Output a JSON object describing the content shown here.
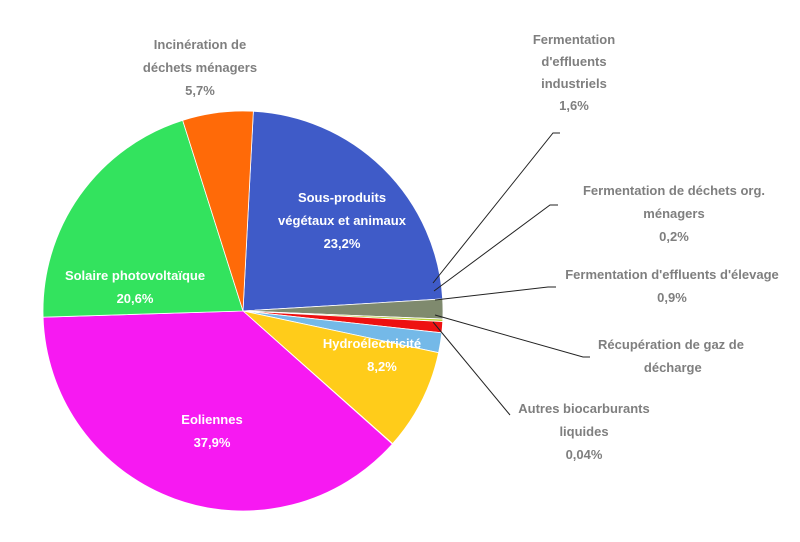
{
  "chart_data": {
    "type": "pie",
    "title": "",
    "slices": [
      {
        "label": "Sous-produits végétaux et animaux",
        "value": 23.2,
        "display": "23,2%",
        "color": "#3f5bc8"
      },
      {
        "label": "Fermentation d'effluents industriels",
        "value": 1.6,
        "display": "1,6%",
        "color": "#7f8a6e"
      },
      {
        "label": "Fermentation de déchets org. ménagers",
        "value": 0.2,
        "display": "0,2%",
        "color": "#b8cf3c"
      },
      {
        "label": "Fermentation d'effluents d'élevage",
        "value": 0.9,
        "display": "0,9%",
        "color": "#ee1111"
      },
      {
        "label": "Récupération de gaz de décharge",
        "value": 1.6,
        "display": "",
        "color": "#74b9e8"
      },
      {
        "label": "Hydroélectricité",
        "value": 8.2,
        "display": "8,2%",
        "color": "#ffcc1a"
      },
      {
        "label": "Autres biocarburants liquides",
        "value": 0.04,
        "display": "0,04%",
        "color": "#9a9a9a"
      },
      {
        "label": "Eoliennes",
        "value": 37.9,
        "display": "37,9%",
        "color": "#f719f2"
      },
      {
        "label": "Solaire photovoltaïque",
        "value": 20.6,
        "display": "20,6%",
        "color": "#33e35e"
      },
      {
        "label": "Incinération de déchets ménagers",
        "value": 5.7,
        "display": "5,7%",
        "color": "#ff6a08"
      }
    ],
    "labels": {
      "sous_produits": {
        "line1": "Sous-produits",
        "line2": "végétaux et animaux",
        "value": "23,2%"
      },
      "ferm_industriels": {
        "line1": "Fermentation",
        "line2": "d'effluents",
        "line3": "industriels",
        "value": "1,6%"
      },
      "ferm_menagers": {
        "line1": "Fermentation de déchets org.",
        "line2": "ménagers",
        "value": "0,2%"
      },
      "ferm_elevage": {
        "line1": "Fermentation d'effluents d'élevage",
        "value": "0,9%"
      },
      "recup_gaz": {
        "line1": "Récupération de gaz de",
        "line2": "\u0002 décharge"
      },
      "hydro": {
        "line1": "Hydroélectricité",
        "value": "8,2%"
      },
      "autres_bio": {
        "line1": "Autres biocarburants",
        "line2": "liquides",
        "value": "0,04%"
      },
      "eoliennes": {
        "line1": "Eoliennes",
        "value": "37,9%"
      },
      "solaire": {
        "line1": "Solaire photovoltaïque",
        "value": "20,6%"
      },
      "incineration": {
        "line1": "Incinération de",
        "line2": "déchets ménagers",
        "value": "5,7%"
      }
    },
    "legend": "none"
  }
}
